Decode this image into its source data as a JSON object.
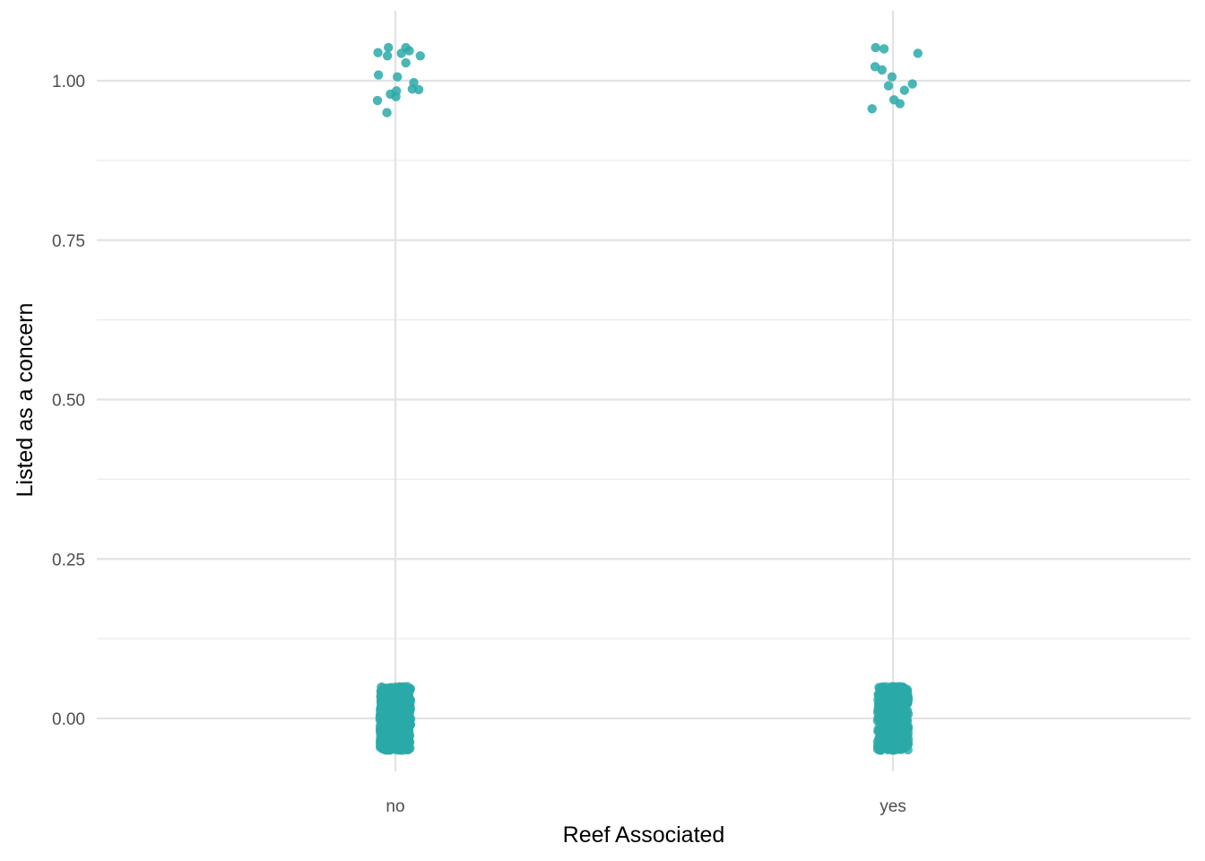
{
  "chart_data": {
    "type": "scatter",
    "xlabel": "Reef Associated",
    "ylabel": "Listed as a concern",
    "categories": [
      "no",
      "yes"
    ],
    "yticks": [
      0.0,
      0.25,
      0.5,
      0.75,
      1.0
    ],
    "ytick_labels": [
      "0.00",
      "0.25",
      "0.50",
      "0.75",
      "1.00"
    ],
    "ylim": [
      -0.1,
      1.1
    ],
    "grid": true,
    "jitter": {
      "x_width": 0.05,
      "y_height": 0.05
    },
    "point_color": "#2aa9a9",
    "series": [
      {
        "category": "no",
        "listed_points": [
          {
            "dx": -0.035,
            "y": 1.044
          },
          {
            "dx": -0.014,
            "y": 1.052
          },
          {
            "dx": -0.016,
            "y": 1.039
          },
          {
            "dx": 0.021,
            "y": 1.052
          },
          {
            "dx": 0.028,
            "y": 1.047
          },
          {
            "dx": 0.012,
            "y": 1.043
          },
          {
            "dx": 0.05,
            "y": 1.039
          },
          {
            "dx": 0.021,
            "y": 1.028
          },
          {
            "dx": -0.034,
            "y": 1.009
          },
          {
            "dx": 0.004,
            "y": 1.006
          },
          {
            "dx": 0.037,
            "y": 0.997
          },
          {
            "dx": 0.047,
            "y": 0.986
          },
          {
            "dx": 0.034,
            "y": 0.987
          },
          {
            "dx": 0.002,
            "y": 0.984
          },
          {
            "dx": -0.01,
            "y": 0.979
          },
          {
            "dx": 0.001,
            "y": 0.975
          },
          {
            "dx": -0.036,
            "y": 0.969
          },
          {
            "dx": -0.017,
            "y": 0.95
          }
        ],
        "not_listed_count": 640
      },
      {
        "category": "yes",
        "listed_points": [
          {
            "dx": -0.035,
            "y": 1.052
          },
          {
            "dx": -0.018,
            "y": 1.05
          },
          {
            "dx": 0.05,
            "y": 1.043
          },
          {
            "dx": -0.036,
            "y": 1.022
          },
          {
            "dx": -0.022,
            "y": 1.017
          },
          {
            "dx": -0.002,
            "y": 1.006
          },
          {
            "dx": 0.039,
            "y": 0.995
          },
          {
            "dx": -0.009,
            "y": 0.992
          },
          {
            "dx": 0.023,
            "y": 0.985
          },
          {
            "dx": 0.002,
            "y": 0.97
          },
          {
            "dx": 0.014,
            "y": 0.964
          },
          {
            "dx": -0.042,
            "y": 0.956
          }
        ],
        "not_listed_count": 520
      }
    ]
  }
}
